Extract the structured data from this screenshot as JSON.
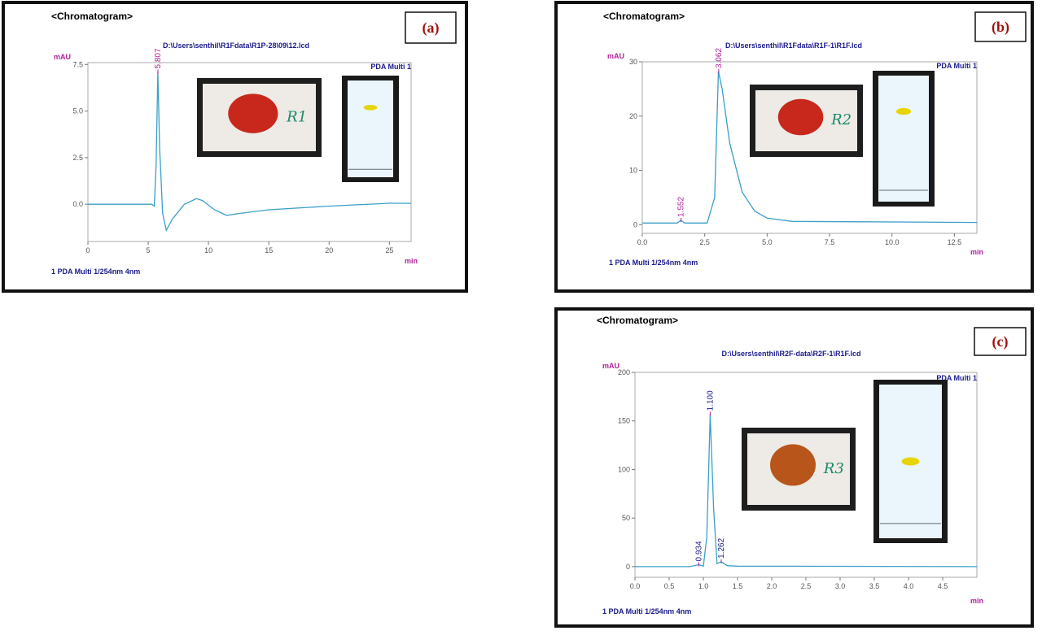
{
  "chart_data": [
    {
      "type": "line",
      "title": "<Chromatogram>",
      "panel_label": "(a)",
      "subtitle": "D:\\Users\\senthil\\R1Fdata\\R1P-28\\09\\12.lcd",
      "y_label": "mAU",
      "x_label": "min",
      "footer": "1  PDA Multi 1/254nm 4nm",
      "photo_label": "R1",
      "x": [
        0,
        3,
        5.3,
        5.5,
        5.65,
        5.8,
        5.95,
        6.2,
        6.5,
        7,
        8,
        9,
        9.5,
        10.5,
        11.5,
        12.5,
        15,
        20,
        25,
        26.8
      ],
      "series": [
        {
          "name": "PDA Multi 1",
          "color": "#3a9fc8",
          "values": [
            0,
            0,
            0,
            -0.1,
            2,
            7.1,
            3,
            -0.5,
            -1.4,
            -0.8,
            0,
            0.3,
            0.2,
            -0.3,
            -0.6,
            -0.5,
            -0.3,
            -0.1,
            0.05,
            0.05
          ]
        }
      ],
      "peaks": [
        5.807
      ],
      "xlim": [
        0,
        26.8
      ],
      "ylim": [
        -2.0,
        7.6
      ],
      "xticks": [
        0,
        5,
        10,
        15,
        20,
        25
      ],
      "yticks": [
        {
          "value": 0,
          "label": "0.0"
        },
        2.5,
        {
          "value": 5,
          "label": "5.0"
        },
        7.5
      ]
    },
    {
      "type": "line",
      "title": "<Chromatogram>",
      "panel_label": "(b)",
      "subtitle": "D:\\Users\\senthil\\R1Fdata\\R1F-1\\R1F.lcd",
      "y_label": "mAU",
      "x_label": "min",
      "footer": "1  PDA Multi 1/254nm 4nm",
      "photo_label": "R2",
      "x": [
        0,
        1.4,
        1.55,
        1.7,
        2.6,
        2.9,
        3.05,
        3.2,
        3.5,
        4,
        4.5,
        5,
        6,
        13.4
      ],
      "series": [
        {
          "name": "PDA Multi 1",
          "color": "#3a9fc8",
          "values": [
            0.3,
            0.3,
            0.8,
            0.3,
            0.3,
            5,
            28.2,
            25,
            15,
            6,
            2.5,
            1.2,
            0.6,
            0.4
          ]
        }
      ],
      "peaks": [
        1.552,
        3.062
      ],
      "xlim": [
        0,
        13.4
      ],
      "ylim": [
        -1.6,
        30
      ],
      "xticks": [
        {
          "value": 0,
          "label": "0.0"
        },
        2.5,
        {
          "value": 5,
          "label": "5.0"
        },
        7.5,
        {
          "value": 10,
          "label": "10.0"
        },
        12.5
      ],
      "yticks": [
        0,
        10,
        20,
        30
      ]
    },
    {
      "type": "line",
      "title": "<Chromatogram>",
      "panel_label": "(c)",
      "subtitle": "D:\\Users\\senthil\\R2F-data\\R2F-1\\R1F.lcd",
      "y_label": "mAU",
      "x_label": "min",
      "footer": "1  PDA Multi 1/254nm 4nm",
      "photo_label": "R3",
      "x": [
        0,
        0.8,
        0.93,
        1.0,
        1.05,
        1.1,
        1.15,
        1.2,
        1.26,
        1.35,
        1.5,
        5
      ],
      "series": [
        {
          "name": "PDA Multi 1",
          "color": "#3a9fc8",
          "values": [
            0,
            0,
            2,
            0.5,
            30,
            157,
            60,
            3,
            5,
            1,
            0.5,
            0
          ]
        }
      ],
      "peaks": [
        0.934,
        {
          "value": 1.1,
          "label": "1.100"
        },
        1.262
      ],
      "xlim": [
        0,
        5
      ],
      "ylim": [
        -11,
        200
      ],
      "xticks": [
        {
          "value": 0,
          "label": "0.0"
        },
        0.5,
        {
          "value": 1,
          "label": "1.0"
        },
        1.5,
        {
          "value": 2,
          "label": "2.0"
        },
        2.5,
        {
          "value": 3,
          "label": "3.0"
        },
        3.5,
        {
          "value": 4,
          "label": "4.0"
        },
        4.5
      ],
      "yticks": [
        0,
        50,
        100,
        150,
        200
      ]
    }
  ]
}
